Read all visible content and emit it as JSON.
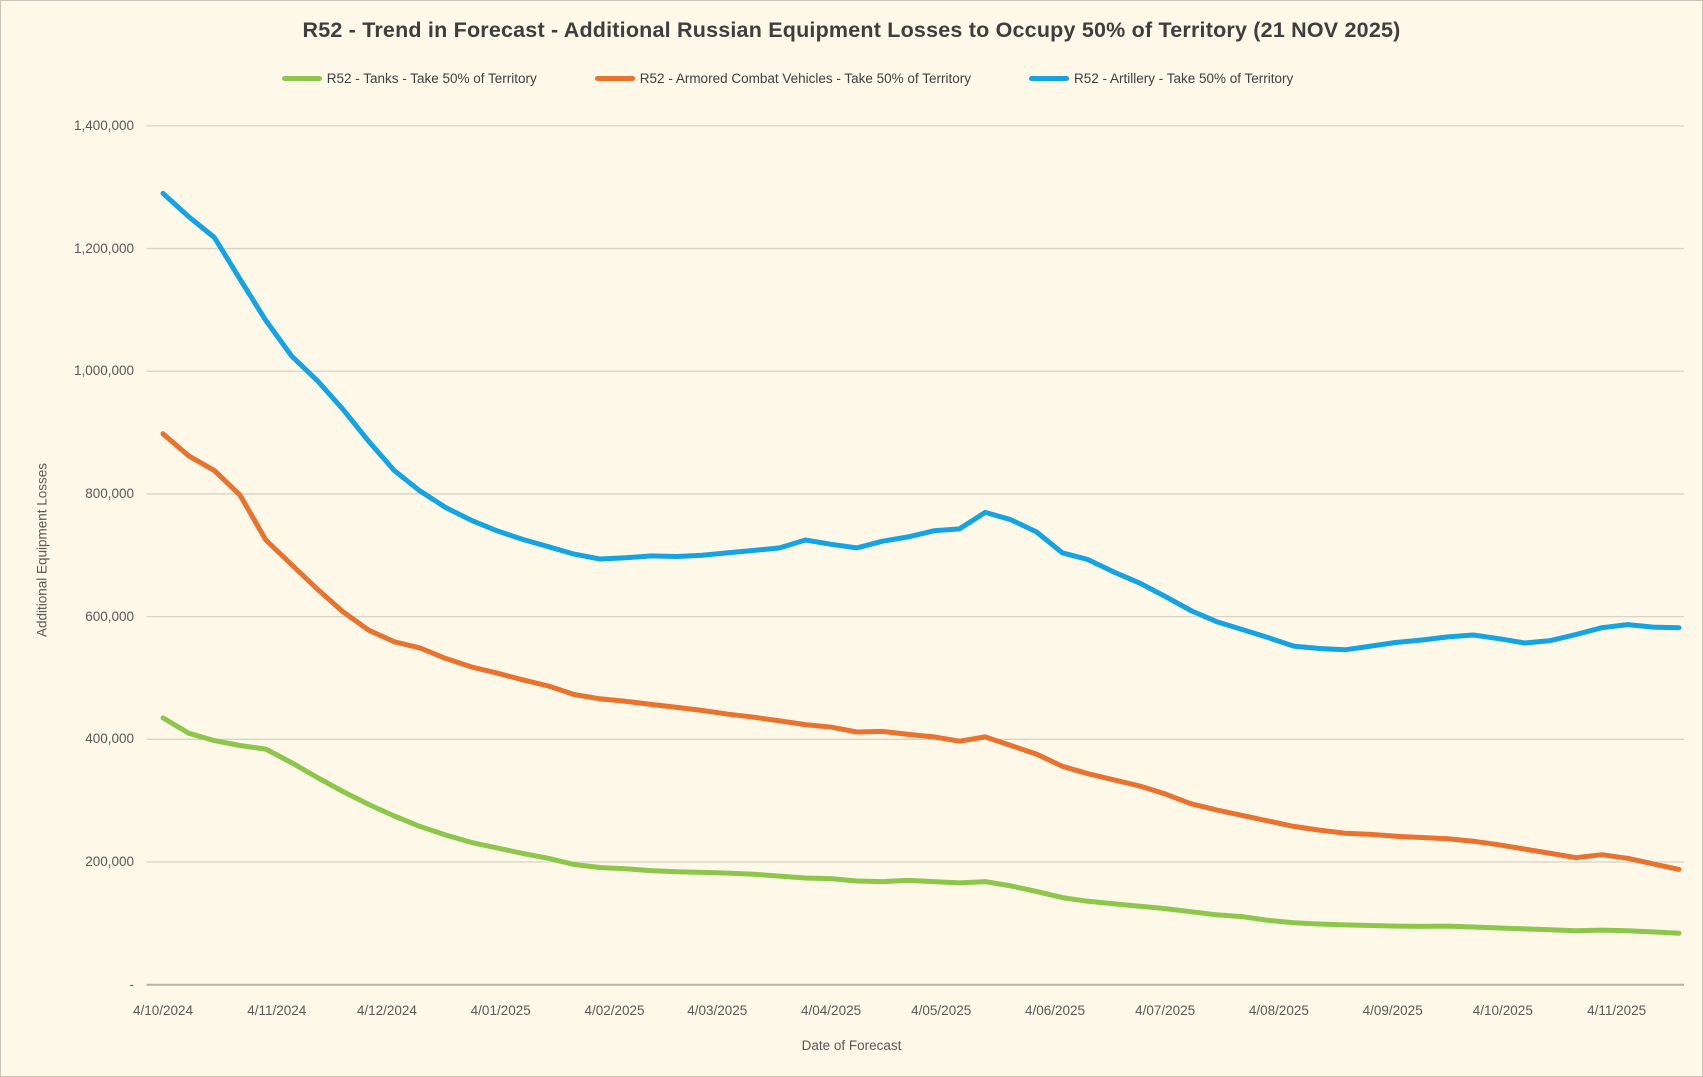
{
  "title": "R52 - Trend in Forecast - Additional Russian Equipment Losses to Occupy 50% of Territory (21 NOV 2025)",
  "axes": {
    "y_title": "Additional Equipment Losses",
    "x_title": "Date of Forecast",
    "y_ticks": [
      {
        "value": 1400000,
        "label": "1,400,000"
      },
      {
        "value": 1200000,
        "label": "1,200,000"
      },
      {
        "value": 1000000,
        "label": "1,000,000"
      },
      {
        "value": 800000,
        "label": "800,000"
      },
      {
        "value": 600000,
        "label": "600,000"
      },
      {
        "value": 400000,
        "label": "400,000"
      },
      {
        "value": 200000,
        "label": "200,000"
      },
      {
        "value": 0,
        "label": "-"
      }
    ],
    "x_ticks": [
      {
        "date": "2024-10-04",
        "label": "4/10/2024"
      },
      {
        "date": "2024-11-04",
        "label": "4/11/2024"
      },
      {
        "date": "2024-12-04",
        "label": "4/12/2024"
      },
      {
        "date": "2025-01-04",
        "label": "4/01/2025"
      },
      {
        "date": "2025-02-04",
        "label": "4/02/2025"
      },
      {
        "date": "2025-03-04",
        "label": "4/03/2025"
      },
      {
        "date": "2025-04-04",
        "label": "4/04/2025"
      },
      {
        "date": "2025-05-04",
        "label": "4/05/2025"
      },
      {
        "date": "2025-06-04",
        "label": "4/06/2025"
      },
      {
        "date": "2025-07-04",
        "label": "4/07/2025"
      },
      {
        "date": "2025-08-04",
        "label": "4/08/2025"
      },
      {
        "date": "2025-09-04",
        "label": "4/09/2025"
      },
      {
        "date": "2025-10-04",
        "label": "4/10/2025"
      },
      {
        "date": "2025-11-04",
        "label": "4/11/2025"
      }
    ]
  },
  "colors": {
    "background": "#FDF8E7",
    "gridline": "#D6D3C7",
    "axis_line": "#B5B3A9",
    "title_text": "#3E3E3E",
    "axis_text": "#595959"
  },
  "chart_data": {
    "type": "line",
    "title": "R52 - Trend in Forecast - Additional Russian Equipment Losses to Occupy 50% of Territory (21 NOV 2025)",
    "xlabel": "Date of Forecast",
    "ylabel": "Additional Equipment Losses",
    "ylim": [
      0,
      1400000
    ],
    "grid": "horizontal",
    "legend_position": "top",
    "x": [
      "2024-10-04",
      "2024-10-11",
      "2024-10-18",
      "2024-10-25",
      "2024-11-01",
      "2024-11-08",
      "2024-11-15",
      "2024-11-22",
      "2024-11-29",
      "2024-12-06",
      "2024-12-13",
      "2024-12-20",
      "2024-12-27",
      "2025-01-03",
      "2025-01-10",
      "2025-01-17",
      "2025-01-24",
      "2025-01-31",
      "2025-02-07",
      "2025-02-14",
      "2025-02-21",
      "2025-02-28",
      "2025-03-07",
      "2025-03-14",
      "2025-03-21",
      "2025-03-28",
      "2025-04-04",
      "2025-04-11",
      "2025-04-18",
      "2025-04-25",
      "2025-05-02",
      "2025-05-09",
      "2025-05-16",
      "2025-05-23",
      "2025-05-30",
      "2025-06-06",
      "2025-06-13",
      "2025-06-20",
      "2025-06-27",
      "2025-07-04",
      "2025-07-11",
      "2025-07-18",
      "2025-07-25",
      "2025-08-01",
      "2025-08-08",
      "2025-08-15",
      "2025-08-22",
      "2025-08-29",
      "2025-09-05",
      "2025-09-12",
      "2025-09-19",
      "2025-09-26",
      "2025-10-03",
      "2025-10-10",
      "2025-10-17",
      "2025-10-24",
      "2025-10-31",
      "2025-11-07",
      "2025-11-14",
      "2025-11-21"
    ],
    "series": [
      {
        "key": "tanks",
        "name": "R52 - Tanks - Take 50% of Territory",
        "color": "#8CC74B",
        "values": [
          435000,
          410000,
          398000,
          390000,
          384000,
          362000,
          338000,
          315000,
          294000,
          275000,
          258000,
          244000,
          232000,
          223000,
          214000,
          206000,
          196000,
          191000,
          189000,
          186000,
          184000,
          183000,
          182000,
          180000,
          177000,
          174000,
          173000,
          169000,
          168000,
          170000,
          168000,
          166000,
          168000,
          161000,
          152000,
          142000,
          136000,
          132000,
          128000,
          124000,
          119000,
          114000,
          111000,
          105000,
          101000,
          99000,
          97500,
          96500,
          95500,
          95000,
          95500,
          94000,
          92500,
          91000,
          89500,
          88000,
          89000,
          88000,
          86000,
          84000
        ]
      },
      {
        "key": "acv",
        "name": "R52 - Armored Combat Vehicles - Take 50% of Territory",
        "color": "#E8722E",
        "values": [
          898000,
          862000,
          838000,
          798000,
          725000,
          685000,
          645000,
          608000,
          578000,
          559000,
          549000,
          532000,
          518000,
          508000,
          497000,
          487000,
          473000,
          466000,
          462000,
          457000,
          452000,
          447000,
          441000,
          436000,
          430000,
          424000,
          420000,
          412000,
          413000,
          408000,
          404000,
          397000,
          404000,
          390000,
          376000,
          356000,
          344000,
          334000,
          324000,
          311000,
          295000,
          285000,
          276000,
          267000,
          258000,
          252000,
          247000,
          245000,
          242000,
          240000,
          238000,
          234000,
          228000,
          221000,
          214000,
          207000,
          212000,
          206000,
          197000,
          188000
        ]
      },
      {
        "key": "artillery",
        "name": "R52 - Artillery - Take 50% of Territory",
        "color": "#14A3E3",
        "values": [
          1290000,
          1252000,
          1218000,
          1150000,
          1083000,
          1025000,
          985000,
          938000,
          886000,
          838000,
          805000,
          778000,
          757000,
          740000,
          726000,
          714000,
          702000,
          694000,
          696000,
          699000,
          698000,
          700000,
          704000,
          708000,
          712000,
          725000,
          718000,
          712000,
          723000,
          730000,
          740000,
          743000,
          770000,
          758000,
          738000,
          704000,
          693000,
          673000,
          655000,
          633000,
          610000,
          592000,
          579000,
          566000,
          552000,
          548000,
          546000,
          552000,
          558000,
          562000,
          567000,
          570000,
          564000,
          557000,
          561000,
          571000,
          582000,
          587000,
          583000,
          582000
        ]
      }
    ]
  }
}
